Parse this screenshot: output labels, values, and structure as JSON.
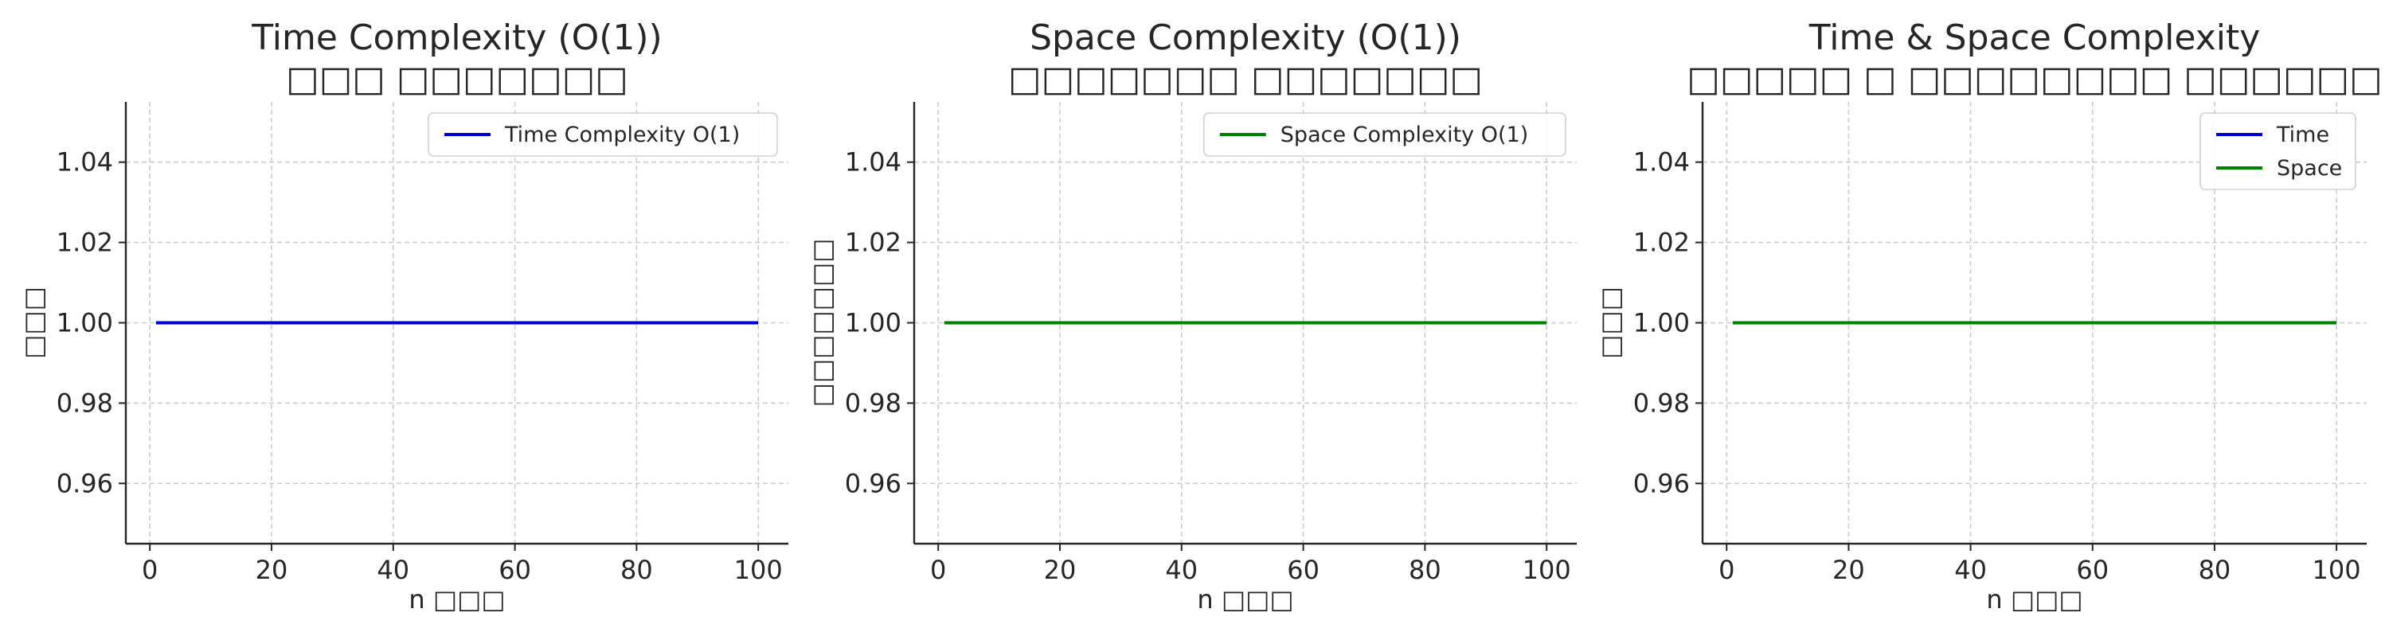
{
  "chart_data": [
    {
      "type": "line",
      "title": "Time Complexity (O(1))",
      "subtitle": "□□□ □□□□□□□",
      "xlabel": "n □□□",
      "ylabel": "□□□",
      "x": [
        1,
        100
      ],
      "xlim": [
        -3.95,
        104.95
      ],
      "ylim": [
        0.945,
        1.055
      ],
      "xticks": [
        0,
        20,
        40,
        60,
        80,
        100
      ],
      "yticks": [
        0.96,
        0.98,
        1.0,
        1.02,
        1.04
      ],
      "ytick_labels": [
        "0.96",
        "0.98",
        "1.00",
        "1.02",
        "1.04"
      ],
      "grid": true,
      "legend_position": "upper right",
      "series": [
        {
          "name": "Time Complexity O(1)",
          "values": [
            1,
            1
          ],
          "color": "#0000cc"
        }
      ]
    },
    {
      "type": "line",
      "title": "Space Complexity (O(1))",
      "subtitle": "□□□□□□□ □□□□□□□",
      "xlabel": "n □□□",
      "ylabel": "□□□□□□□",
      "x": [
        1,
        100
      ],
      "xlim": [
        -3.95,
        104.95
      ],
      "ylim": [
        0.945,
        1.055
      ],
      "xticks": [
        0,
        20,
        40,
        60,
        80,
        100
      ],
      "yticks": [
        0.96,
        0.98,
        1.0,
        1.02,
        1.04
      ],
      "ytick_labels": [
        "0.96",
        "0.98",
        "1.00",
        "1.02",
        "1.04"
      ],
      "grid": true,
      "legend_position": "upper right",
      "series": [
        {
          "name": "Space Complexity O(1)",
          "values": [
            1,
            1
          ],
          "color": "#008000"
        }
      ]
    },
    {
      "type": "line",
      "title": "Time & Space Complexity",
      "subtitle": "□□□□□ □ □□□□□□□□ □□□□□□",
      "xlabel": "n □□□",
      "ylabel": "□□□",
      "x": [
        1,
        100
      ],
      "xlim": [
        -3.95,
        104.95
      ],
      "ylim": [
        0.945,
        1.055
      ],
      "xticks": [
        0,
        20,
        40,
        60,
        80,
        100
      ],
      "yticks": [
        0.96,
        0.98,
        1.0,
        1.02,
        1.04
      ],
      "ytick_labels": [
        "0.96",
        "0.98",
        "1.00",
        "1.02",
        "1.04"
      ],
      "grid": true,
      "legend_position": "upper right",
      "series": [
        {
          "name": "Time",
          "values": [
            1,
            1
          ],
          "color": "#0000cc"
        },
        {
          "name": "Space",
          "values": [
            1,
            1
          ],
          "color": "#008000"
        }
      ]
    }
  ]
}
